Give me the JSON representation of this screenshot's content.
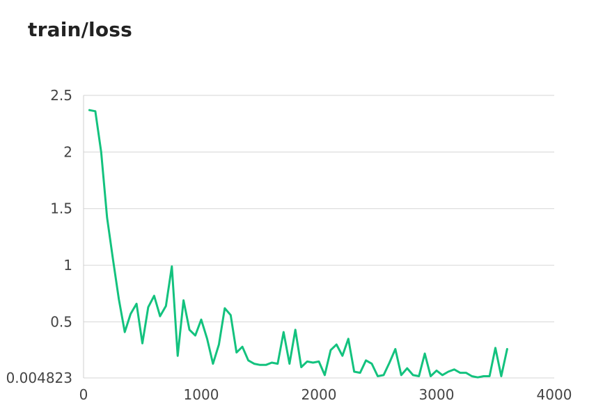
{
  "chart_data": {
    "type": "line",
    "title": "train/loss",
    "xlabel": "",
    "ylabel": "",
    "xlim": [
      0,
      4000
    ],
    "ylim": [
      0.004823,
      2.5
    ],
    "x_ticks": [
      0,
      1000,
      2000,
      3000,
      4000
    ],
    "x_tick_labels": [
      "0",
      "1000",
      "2000",
      "3000",
      "4000"
    ],
    "y_ticks": [
      0.004823,
      0.5,
      1,
      1.5,
      2,
      2.5
    ],
    "y_tick_labels": [
      "0.004823",
      "0.5",
      "1",
      "1.5",
      "2",
      "2.5"
    ],
    "grid": "horizontal",
    "line_color": "#13c27e",
    "series": [
      {
        "x": [
          50,
          100,
          150,
          200,
          250,
          300,
          350,
          400,
          450,
          500,
          550,
          600,
          650,
          700,
          750,
          800,
          850,
          900,
          950,
          1000,
          1050,
          1100,
          1150,
          1200,
          1250,
          1300,
          1350,
          1400,
          1450,
          1500,
          1550,
          1600,
          1650,
          1700,
          1750,
          1800,
          1850,
          1900,
          1950,
          2000,
          2050,
          2100,
          2150,
          2200,
          2250,
          2300,
          2350,
          2400,
          2450,
          2500,
          2550,
          2600,
          2650,
          2700,
          2750,
          2800,
          2850,
          2900,
          2950,
          3000,
          3050,
          3100,
          3150,
          3200,
          3250,
          3300,
          3350,
          3400,
          3450,
          3500,
          3550,
          3600
        ],
        "values": [
          2.37,
          2.36,
          2.0,
          1.42,
          1.05,
          0.7,
          0.41,
          0.57,
          0.66,
          0.31,
          0.63,
          0.73,
          0.55,
          0.64,
          0.99,
          0.2,
          0.69,
          0.43,
          0.38,
          0.52,
          0.35,
          0.13,
          0.3,
          0.62,
          0.56,
          0.23,
          0.28,
          0.16,
          0.13,
          0.12,
          0.12,
          0.14,
          0.13,
          0.41,
          0.13,
          0.43,
          0.1,
          0.15,
          0.14,
          0.15,
          0.03,
          0.25,
          0.3,
          0.2,
          0.35,
          0.06,
          0.05,
          0.16,
          0.13,
          0.02,
          0.03,
          0.14,
          0.26,
          0.03,
          0.09,
          0.03,
          0.02,
          0.22,
          0.02,
          0.07,
          0.03,
          0.06,
          0.08,
          0.05,
          0.05,
          0.02,
          0.01,
          0.02,
          0.02,
          0.27,
          0.02,
          0.26
        ]
      }
    ]
  }
}
